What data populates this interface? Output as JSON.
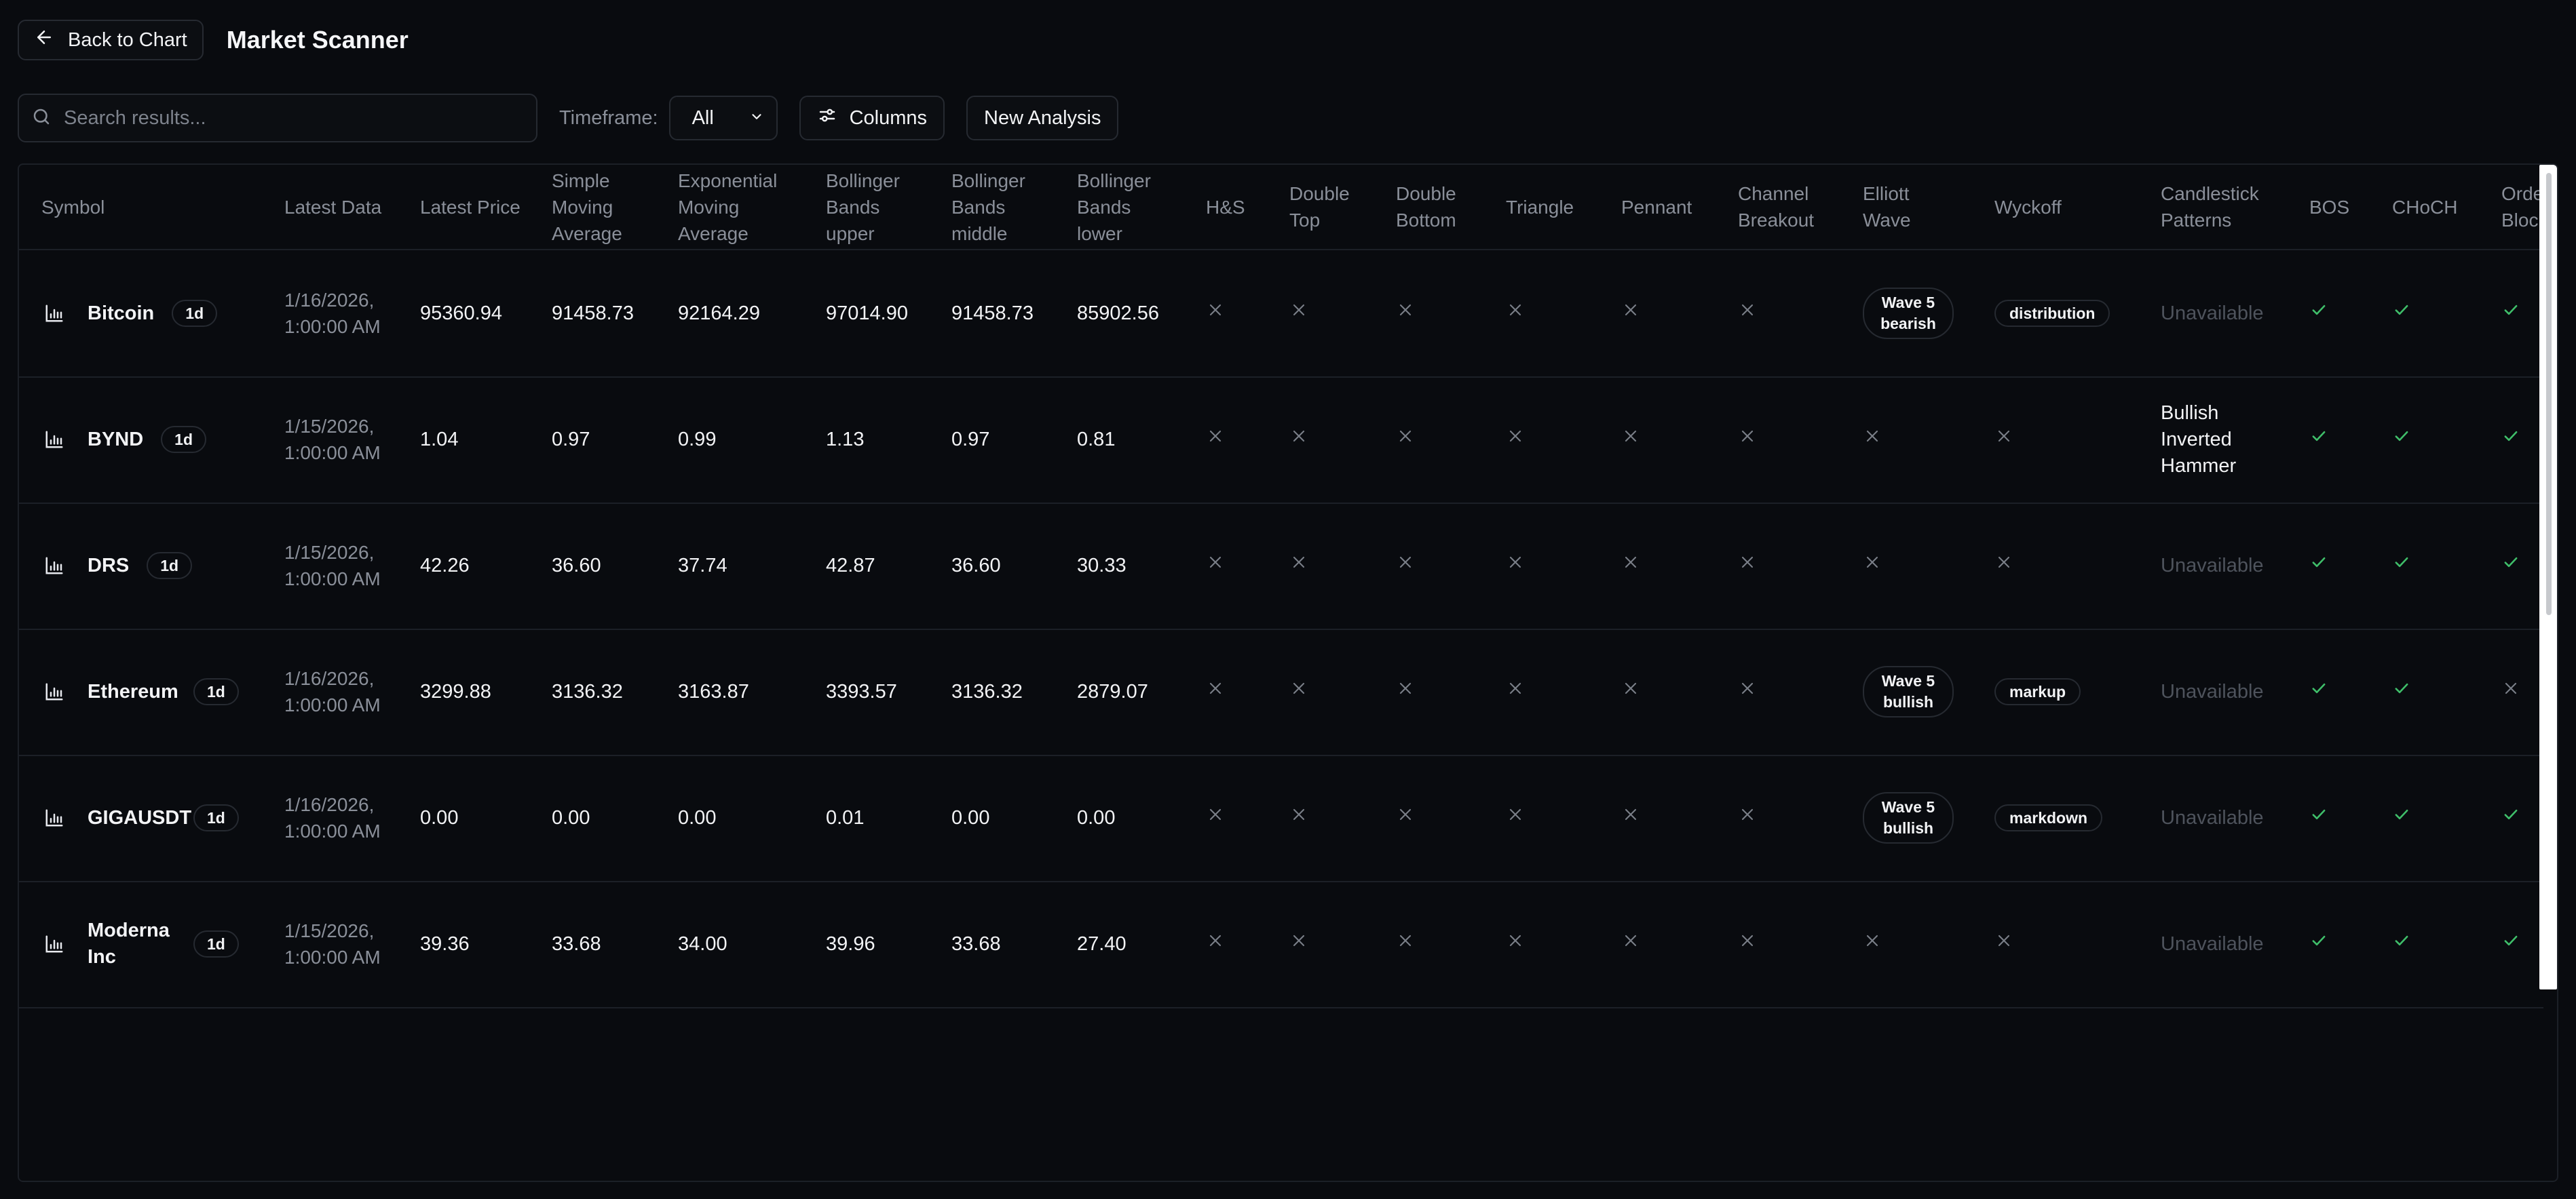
{
  "header": {
    "back_label": "Back to Chart",
    "title": "Market Scanner"
  },
  "toolbar": {
    "search_placeholder": "Search results...",
    "timeframe_label": "Timeframe:",
    "timeframe_value": "All",
    "columns_label": "Columns",
    "new_analysis_label": "New Analysis"
  },
  "table": {
    "headers": {
      "symbol": "Symbol",
      "latest_data": "Latest Data",
      "latest_price": "Latest Price",
      "sma": "Simple Moving Average",
      "ema": "Exponential Moving Average",
      "bb_upper": "Bollinger Bands upper",
      "bb_middle": "Bollinger Bands middle",
      "bb_lower": "Bollinger Bands lower",
      "hs": "H&S",
      "double_top": "Double Top",
      "double_bottom": "Double Bottom",
      "triangle": "Triangle",
      "pennant": "Pennant",
      "channel_breakout": "Channel Breakout",
      "elliott": "Elliott Wave",
      "wyckoff": "Wyckoff",
      "candlestick": "Candlestick Patterns",
      "bos": "BOS",
      "choch": "CHoCH",
      "order_block": "Order Block"
    },
    "rows": [
      {
        "symbol": "Bitcoin",
        "tf": "1d",
        "date": "1/16/2026, 1:00:00 AM",
        "price": "95360.94",
        "sma": "91458.73",
        "ema": "92164.29",
        "bb_upper": "97014.90",
        "bb_middle": "91458.73",
        "bb_lower": "85902.56",
        "elliott": "Wave 5 bearish",
        "wyckoff": "distribution",
        "candle": "Unavailable",
        "bos": true,
        "choch": true,
        "ob": true
      },
      {
        "symbol": "BYND",
        "tf": "1d",
        "date": "1/15/2026, 1:00:00 AM",
        "price": "1.04",
        "sma": "0.97",
        "ema": "0.99",
        "bb_upper": "1.13",
        "bb_middle": "0.97",
        "bb_lower": "0.81",
        "elliott": null,
        "wyckoff": null,
        "candle": "Bullish Inverted Hammer",
        "bos": true,
        "choch": true,
        "ob": true
      },
      {
        "symbol": "DRS",
        "tf": "1d",
        "date": "1/15/2026, 1:00:00 AM",
        "price": "42.26",
        "sma": "36.60",
        "ema": "37.74",
        "bb_upper": "42.87",
        "bb_middle": "36.60",
        "bb_lower": "30.33",
        "elliott": null,
        "wyckoff": null,
        "candle": "Unavailable",
        "bos": true,
        "choch": true,
        "ob": true
      },
      {
        "symbol": "Ethereum",
        "tf": "1d",
        "date": "1/16/2026, 1:00:00 AM",
        "price": "3299.88",
        "sma": "3136.32",
        "ema": "3163.87",
        "bb_upper": "3393.57",
        "bb_middle": "3136.32",
        "bb_lower": "2879.07",
        "elliott": "Wave 5 bullish",
        "wyckoff": "markup",
        "candle": "Unavailable",
        "bos": true,
        "choch": true,
        "ob": false
      },
      {
        "symbol": "GIGAUSDT",
        "tf": "1d",
        "date": "1/16/2026, 1:00:00 AM",
        "price": "0.00",
        "sma": "0.00",
        "ema": "0.00",
        "bb_upper": "0.01",
        "bb_middle": "0.00",
        "bb_lower": "0.00",
        "elliott": "Wave 5 bullish",
        "wyckoff": "markdown",
        "candle": "Unavailable",
        "bos": true,
        "choch": true,
        "ob": true
      },
      {
        "symbol": "Moderna Inc",
        "tf": "1d",
        "date": "1/15/2026, 1:00:00 AM",
        "price": "39.36",
        "sma": "33.68",
        "ema": "34.00",
        "bb_upper": "39.96",
        "bb_middle": "33.68",
        "bb_lower": "27.40",
        "elliott": null,
        "wyckoff": null,
        "candle": "Unavailable",
        "bos": true,
        "choch": true,
        "ob": true
      }
    ]
  },
  "colors": {
    "check": "#3fbf6a",
    "x": "#7a7f88",
    "background": "#090b0f"
  }
}
